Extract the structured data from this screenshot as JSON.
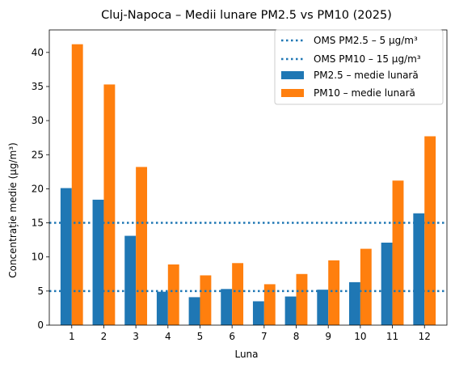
{
  "chart_data": {
    "type": "bar",
    "title": "Cluj-Napoca – Medii lunare PM2.5 vs PM10 (2025)",
    "xlabel": "Luna",
    "ylabel": "Concentrație medie (µg/m³)",
    "categories": [
      "1",
      "2",
      "3",
      "4",
      "5",
      "6",
      "7",
      "8",
      "9",
      "10",
      "11",
      "12"
    ],
    "ylim": [
      0,
      43.3
    ],
    "yticks": [
      0,
      5,
      10,
      15,
      20,
      25,
      30,
      35,
      40
    ],
    "ytick_labels": [
      "0",
      "5",
      "10",
      "15",
      "20",
      "25",
      "30",
      "35",
      "40"
    ],
    "grid": false,
    "legend_position": "top-right",
    "series": [
      {
        "name": "PM2.5 – medie lunară",
        "color": "#1f77b4",
        "values": [
          20.1,
          18.4,
          13.1,
          4.9,
          4.1,
          5.3,
          3.5,
          4.2,
          5.2,
          6.3,
          12.1,
          16.4
        ]
      },
      {
        "name": "PM10 – medie lunară",
        "color": "#ff7f0e",
        "values": [
          41.2,
          35.3,
          23.2,
          8.9,
          7.3,
          9.1,
          6.0,
          7.5,
          9.5,
          11.2,
          21.2,
          27.7
        ]
      }
    ],
    "reference_lines": [
      {
        "label": "OMS PM2.5 – 5 µg/m³",
        "value": 5,
        "color": "#1f77b4",
        "style": "dotted"
      },
      {
        "label": "OMS PM10 – 15 µg/m³",
        "value": 15,
        "color": "#1f77b4",
        "style": "dotted"
      }
    ]
  }
}
